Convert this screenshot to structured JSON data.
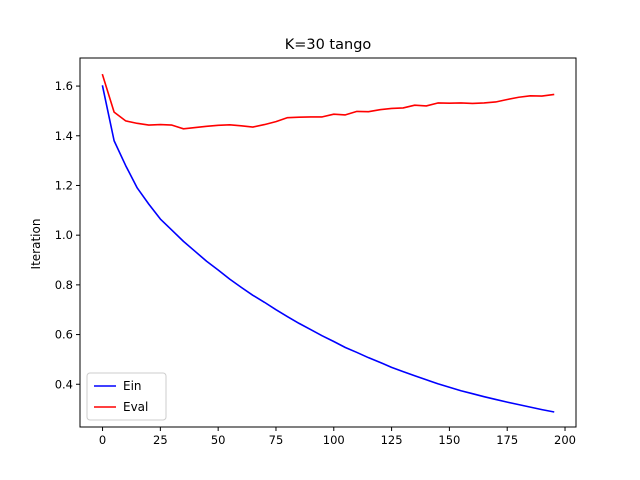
{
  "chart_data": {
    "type": "line",
    "title": "K=30 tango",
    "xlabel": "",
    "ylabel": "Iteration",
    "xlim": [
      -9.75,
      204.75
    ],
    "ylim": [
      0.228,
      1.713
    ],
    "xticks": [
      0,
      25,
      50,
      75,
      100,
      125,
      150,
      175,
      200
    ],
    "yticks": [
      0.4,
      0.6,
      0.8,
      1.0,
      1.2,
      1.4,
      1.6
    ],
    "ytick_labels": [
      "0.4",
      "0.6",
      "0.8",
      "1.0",
      "1.2",
      "1.4",
      "1.6"
    ],
    "grid": false,
    "legend_position": "lower left",
    "x": [
      0,
      5,
      10,
      15,
      20,
      25,
      30,
      35,
      40,
      45,
      50,
      55,
      60,
      65,
      70,
      75,
      80,
      85,
      90,
      95,
      100,
      105,
      110,
      115,
      120,
      125,
      130,
      135,
      140,
      145,
      150,
      155,
      160,
      165,
      170,
      175,
      180,
      185,
      190,
      195
    ],
    "series": [
      {
        "name": "Ein",
        "color": "#0000ff",
        "values": [
          1.6,
          1.38,
          1.28,
          1.19,
          1.125,
          1.065,
          1.02,
          0.975,
          0.935,
          0.895,
          0.86,
          0.823,
          0.79,
          0.758,
          0.73,
          0.7,
          0.672,
          0.645,
          0.62,
          0.595,
          0.572,
          0.548,
          0.528,
          0.507,
          0.488,
          0.468,
          0.451,
          0.434,
          0.418,
          0.402,
          0.388,
          0.374,
          0.362,
          0.35,
          0.339,
          0.328,
          0.318,
          0.308,
          0.298,
          0.289
        ]
      },
      {
        "name": "Eval",
        "color": "#ff0000",
        "values": [
          1.645,
          1.495,
          1.46,
          1.45,
          1.443,
          1.445,
          1.443,
          1.428,
          1.433,
          1.438,
          1.442,
          1.444,
          1.44,
          1.435,
          1.445,
          1.457,
          1.473,
          1.475,
          1.476,
          1.476,
          1.487,
          1.484,
          1.498,
          1.497,
          1.505,
          1.51,
          1.512,
          1.523,
          1.52,
          1.532,
          1.531,
          1.532,
          1.53,
          1.532,
          1.536,
          1.546,
          1.555,
          1.561,
          1.56,
          1.566
        ]
      }
    ]
  }
}
